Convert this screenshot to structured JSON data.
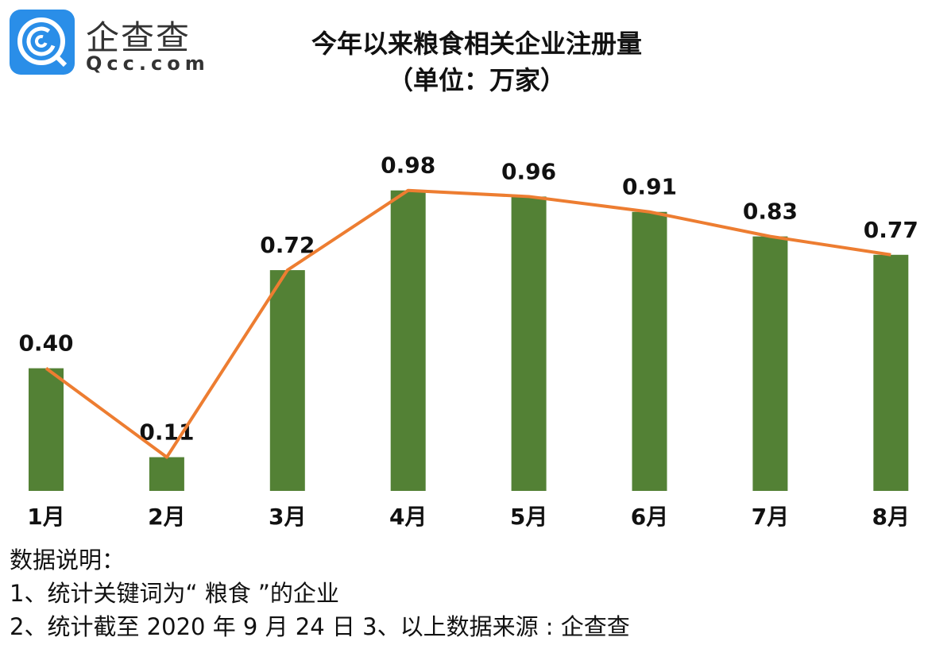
{
  "logo": {
    "brand_cn": "企查查",
    "brand_en": "Qcc.com",
    "color": "#2a8ee8"
  },
  "chart_data": {
    "type": "bar",
    "title": "今年以来粮食相关企业注册量",
    "subtitle": "（单位：万家）",
    "categories": [
      "1月",
      "2月",
      "3月",
      "4月",
      "5月",
      "6月",
      "7月",
      "8月"
    ],
    "series": [
      {
        "type": "bar",
        "values": [
          0.4,
          0.11,
          0.72,
          0.98,
          0.96,
          0.91,
          0.83,
          0.77
        ],
        "color": "#538135"
      },
      {
        "type": "line",
        "values": [
          0.4,
          0.11,
          0.72,
          0.98,
          0.96,
          0.91,
          0.83,
          0.77
        ],
        "color": "#ed7d31"
      }
    ],
    "data_labels": [
      "0.40",
      "0.11",
      "0.72",
      "0.98",
      "0.96",
      "0.91",
      "0.83",
      "0.77"
    ],
    "ylim": [
      0,
      1
    ],
    "grid": false,
    "y_axis_visible": false
  },
  "notes": {
    "heading": "数据说明：",
    "line1": "1、统计关键词为“ 粮食 ”的企业",
    "line2": "2、统计截至 2020 年 9 月 24 日  3、以上数据来源 : 企查查"
  }
}
